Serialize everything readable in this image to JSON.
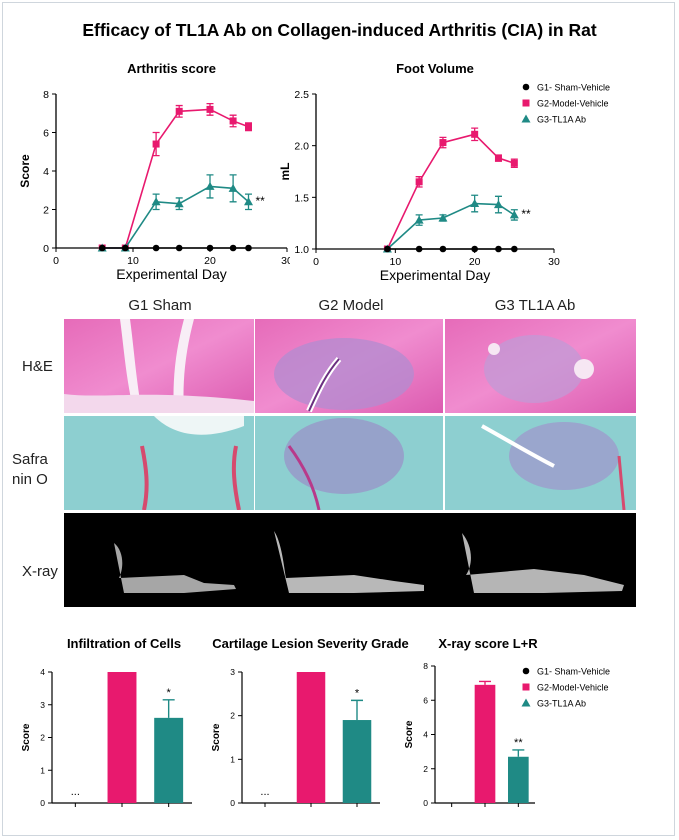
{
  "figure_title": "Efficacy of TL1A Ab on Collagen-induced Arthritis (CIA) in Rat",
  "colors": {
    "g1": "#000000",
    "g2": "#e8196e",
    "g3": "#1f8a85",
    "he_pink": "#e87cc4",
    "saf_teal": "#8ccfcf"
  },
  "histology": {
    "columns": [
      "G1 Sham",
      "G2 Model",
      "G3 TL1A Ab"
    ],
    "rows": [
      "H&E",
      "Safra nin O",
      "X-ray"
    ]
  },
  "chart_data": [
    {
      "type": "line",
      "title": "Arthritis score",
      "xlabel": "Experimental Day",
      "ylabel": "Score",
      "xlim": [
        0,
        30
      ],
      "ylim": [
        0,
        8
      ],
      "xticks": [
        0,
        10,
        20,
        30
      ],
      "yticks": [
        0,
        2,
        4,
        6,
        8
      ],
      "annotation": "**",
      "series": [
        {
          "name": "G1- Sham-Vehicle",
          "x": [
            6,
            9,
            13,
            16,
            20,
            23,
            25
          ],
          "y": [
            0,
            0,
            0,
            0,
            0,
            0,
            0
          ],
          "err": [
            0,
            0,
            0,
            0,
            0,
            0,
            0
          ]
        },
        {
          "name": "G2-Model-Vehicle",
          "x": [
            6,
            9,
            13,
            16,
            20,
            23,
            25
          ],
          "y": [
            0,
            0,
            5.4,
            7.1,
            7.2,
            6.6,
            6.3
          ],
          "err": [
            0,
            0,
            0.6,
            0.3,
            0.3,
            0.3,
            0.2
          ]
        },
        {
          "name": "G3-TL1A Ab",
          "x": [
            6,
            9,
            13,
            16,
            20,
            23,
            25
          ],
          "y": [
            0,
            0,
            2.4,
            2.3,
            3.2,
            3.1,
            2.4
          ],
          "err": [
            0,
            0,
            0.4,
            0.3,
            0.6,
            0.7,
            0.4
          ]
        }
      ]
    },
    {
      "type": "line",
      "title": "Foot Volume",
      "xlabel": "Experimental Day",
      "ylabel": "mL",
      "xlim": [
        0,
        30
      ],
      "ylim": [
        1.0,
        2.5
      ],
      "xticks": [
        0,
        10,
        20,
        30
      ],
      "yticks": [
        "1.0",
        "1.5",
        "2.0",
        "2.5"
      ],
      "annotation": "**",
      "series": [
        {
          "name": "G1- Sham-Vehicle",
          "x": [
            9,
            13,
            16,
            20,
            23,
            25
          ],
          "y": [
            1.0,
            1.0,
            1.0,
            1.0,
            1.0,
            1.0
          ],
          "err": [
            0,
            0,
            0,
            0,
            0,
            0
          ]
        },
        {
          "name": "G2-Model-Vehicle",
          "x": [
            9,
            13,
            16,
            20,
            23,
            25
          ],
          "y": [
            1.0,
            1.65,
            2.03,
            2.11,
            1.88,
            1.83
          ],
          "err": [
            0,
            0.05,
            0.05,
            0.06,
            0.03,
            0.04
          ]
        },
        {
          "name": "G3-TL1A Ab",
          "x": [
            9,
            13,
            16,
            20,
            23,
            25
          ],
          "y": [
            1.0,
            1.28,
            1.3,
            1.44,
            1.43,
            1.33
          ],
          "err": [
            0,
            0.05,
            0.03,
            0.08,
            0.08,
            0.05
          ]
        }
      ]
    },
    {
      "type": "bar",
      "title": "Infiltration of Cells",
      "ylabel": "Score",
      "ylim": [
        0,
        4
      ],
      "yticks": [
        0,
        1,
        2,
        3,
        4
      ],
      "categories": [
        "G1- Sham-Vehicle",
        "G2-Model-Vehicle",
        "G3-TL1A Ab"
      ],
      "values": [
        0,
        4,
        2.6
      ],
      "err": [
        0,
        0,
        0.55
      ],
      "labels": [
        "...",
        "",
        "*"
      ]
    },
    {
      "type": "bar",
      "title": "Cartilage Lesion Severity Grade",
      "ylabel": "Score",
      "ylim": [
        0,
        3
      ],
      "yticks": [
        0,
        1,
        2,
        3
      ],
      "categories": [
        "G1- Sham-Vehicle",
        "G2-Model-Vehicle",
        "G3-TL1A Ab"
      ],
      "values": [
        0,
        3,
        1.9
      ],
      "err": [
        0,
        0,
        0.45
      ],
      "labels": [
        "...",
        "",
        "*"
      ]
    },
    {
      "type": "bar",
      "title": "X-ray score L+R",
      "ylabel": "Score",
      "ylim": [
        0,
        8
      ],
      "yticks": [
        0,
        2,
        4,
        6,
        8
      ],
      "categories": [
        "G1- Sham-Vehicle",
        "G2-Model-Vehicle",
        "G3-TL1A Ab"
      ],
      "values": [
        0,
        6.9,
        2.7
      ],
      "err": [
        0,
        0.2,
        0.4
      ],
      "labels": [
        "",
        "",
        "**"
      ]
    }
  ]
}
